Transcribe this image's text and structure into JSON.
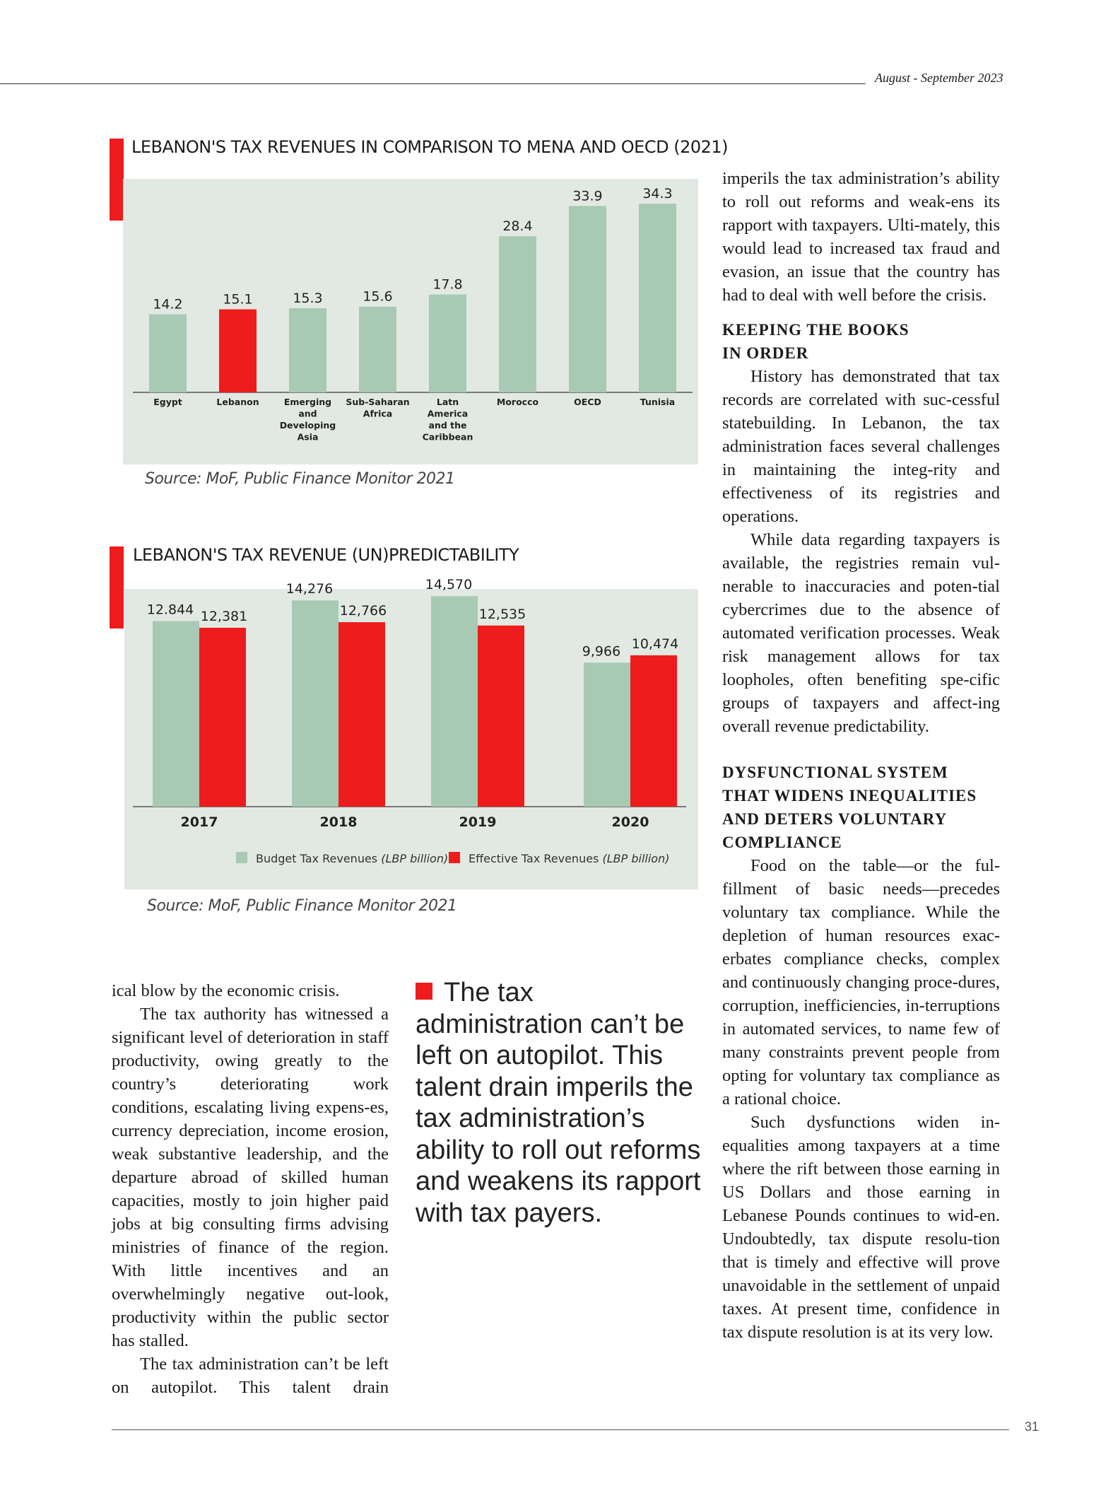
{
  "header": {
    "date": "August - September 2023"
  },
  "chart_data": [
    {
      "type": "bar",
      "title": "LEBANON'S TAX REVENUES IN COMPARISON TO MENA AND OECD (2021)",
      "categories": [
        "Egypt",
        "Lebanon",
        "Emerging and Developing Asia",
        "Sub-Saharan Africa",
        "Latn America and the Caribbean",
        "Morocco",
        "OECD",
        "Tunisia"
      ],
      "category_lines": [
        [
          "Egypt"
        ],
        [
          "Lebanon"
        ],
        [
          "Emerging",
          "and",
          "Developing",
          "Asia"
        ],
        [
          "Sub-Saharan",
          "Africa"
        ],
        [
          "Latn",
          "America",
          "and the",
          "Caribbean"
        ],
        [
          "Morocco"
        ],
        [
          "OECD"
        ],
        [
          "Tunisia"
        ]
      ],
      "values": [
        14.2,
        15.1,
        15.3,
        15.6,
        17.8,
        28.4,
        33.9,
        34.3
      ],
      "value_labels": [
        "14.2",
        "15.1",
        "15.3",
        "15.6",
        "17.8",
        "28.4",
        "33.9",
        "34.3"
      ],
      "highlight_index": 1,
      "colors": {
        "bar": "#a8c9b4",
        "highlight": "#ee1c1c",
        "panel": "#e2e9e2"
      },
      "ylim": [
        0,
        36
      ],
      "xlabel": "",
      "ylabel": "",
      "source": "Source: MoF, Public Finance Monitor 2021"
    },
    {
      "type": "bar",
      "title": "LEBANON'S TAX REVENUE (UN)PREDICTABILITY",
      "categories": [
        "2017",
        "2018",
        "2019",
        "2020"
      ],
      "series": [
        {
          "name": "Budget Tax Revenues",
          "unit": "(LBP billion)",
          "values": [
            12844,
            14276,
            14570,
            9966
          ],
          "value_labels": [
            "12.844",
            "14,276",
            "14,570",
            "9,966"
          ],
          "color": "#a8c9b4"
        },
        {
          "name": "Effective Tax Revenues",
          "unit": "(LBP billion)",
          "values": [
            12381,
            12766,
            12535,
            10474
          ],
          "value_labels": [
            "12,381",
            "12,766",
            "12,535",
            "10,474"
          ],
          "color": "#ee1c1c"
        }
      ],
      "legend": "bottom",
      "xlabel": "",
      "ylabel": "",
      "source": "Source: MoF, Public Finance Monitor 2021"
    }
  ],
  "left_column": {
    "paragraphs": [
      "ical blow by the economic crisis.",
      "The tax authority has witnessed a significant level of deterioration in staff productivity, owing greatly to the country’s deteriorating work conditions, escalating living expens-es, currency depreciation, income erosion, weak substantive leadership, and the departure abroad of skilled human capacities, mostly to join higher paid jobs at big consulting firms advising ministries of finance of the region. With little incentives and an overwhelmingly negative out-look, productivity within the public sector has stalled.",
      "The tax administration can’t be left on autopilot. This talent drain"
    ]
  },
  "pull_quote": "The tax administration can’t be left on autopilot. This talent drain imperils the tax administration’s ability to roll out reforms and weakens its rapport with tax payers.",
  "right_column": {
    "p0": "imperils the tax administration’s ability to roll out reforms and weak-ens its rapport with taxpayers. Ulti-mately, this would lead to increased tax fraud and evasion, an issue that the country has had to deal with well before the crisis.",
    "h1_line1": "KEEPING THE BOOKS",
    "h1_line2": "IN ORDER",
    "p1": "History has demonstrated that tax records are correlated with suc-cessful statebuilding. In Lebanon, the tax administration faces several challenges in maintaining the integ-rity and effectiveness of its registries and operations.",
    "p2": "While data regarding taxpayers is available, the registries remain vul-nerable to inaccuracies and poten-tial cybercrimes due to the absence of automated verification processes. Weak risk management allows for tax loopholes, often benefiting spe-cific groups of taxpayers and affect-ing overall revenue predictability.",
    "h2_line1": "DYSFUNCTIONAL SYSTEM",
    "h2_line2": "THAT WIDENS INEQUALITIES",
    "h2_line3": "AND DETERS VOLUNTARY",
    "h2_line4": "COMPLIANCE",
    "p3": "Food on the table—or the ful-fillment of basic needs—precedes voluntary tax compliance. While the depletion of human resources exac-erbates compliance checks, complex and continuously changing proce-dures, corruption, inefficiencies, in-terruptions in automated services, to name few of many constraints prevent people from opting for voluntary tax compliance as a rational choice.",
    "p4": "Such dysfunctions widen in-equalities among taxpayers at a time where the rift between those earning in US Dollars and those earning in Lebanese Pounds continues to wid-en. Undoubtedly, tax dispute resolu-tion that is timely and effective will prove unavoidable in the settlement of unpaid taxes. At present time, confidence in tax dispute resolution is at its very low."
  },
  "footer": {
    "page_number": "31"
  }
}
